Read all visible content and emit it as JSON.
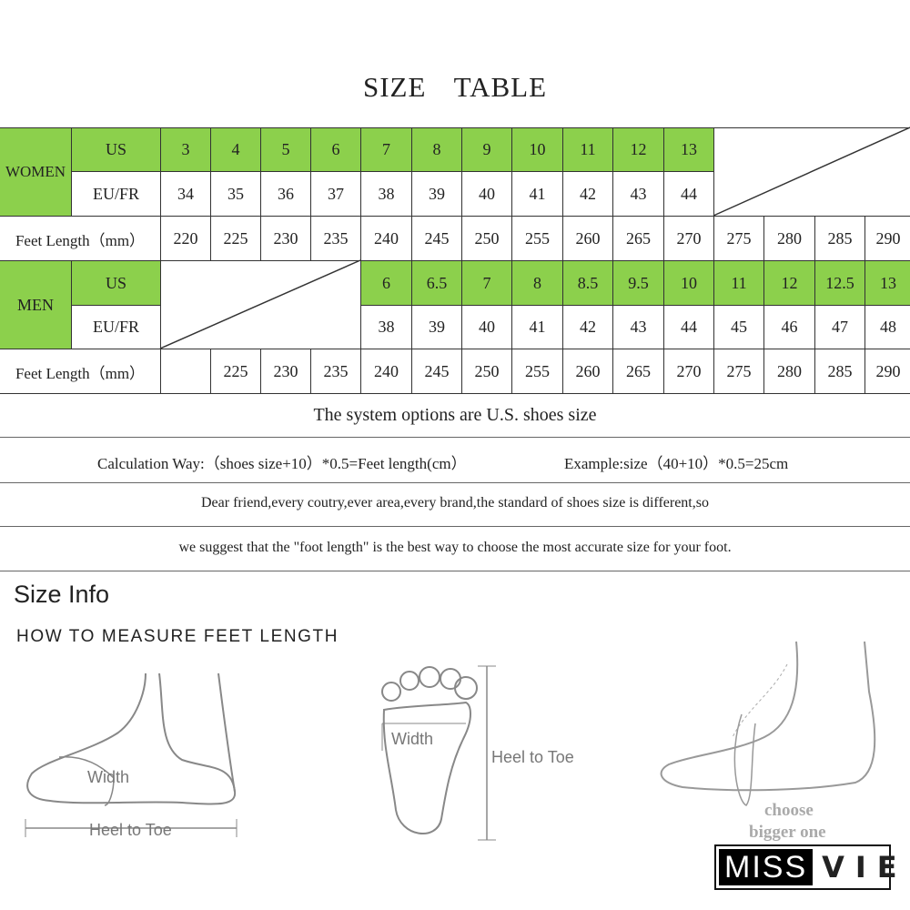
{
  "title": "SIZE    TABLE",
  "colors": {
    "header_green": "#8cd04c"
  },
  "women": {
    "group_label": "WOMEN",
    "us_label": "US",
    "eu_label": "EU/FR",
    "feet_label": "Feet Length（mm）",
    "us": [
      "3",
      "4",
      "5",
      "6",
      "7",
      "8",
      "9",
      "10",
      "11",
      "12",
      "13"
    ],
    "eu": [
      "34",
      "35",
      "36",
      "37",
      "38",
      "39",
      "40",
      "41",
      "42",
      "43",
      "44"
    ],
    "feet": [
      "220",
      "225",
      "230",
      "235",
      "240",
      "245",
      "250",
      "255",
      "260",
      "265",
      "270",
      "275",
      "280",
      "285",
      "290"
    ]
  },
  "men": {
    "group_label": "MEN",
    "us_label": "US",
    "eu_label": "EU/FR",
    "feet_label": "Feet Length（mm）",
    "us": [
      "6",
      "6.5",
      "7",
      "8",
      "8.5",
      "9.5",
      "10",
      "11",
      "12",
      "12.5",
      "13"
    ],
    "eu": [
      "38",
      "39",
      "40",
      "41",
      "42",
      "43",
      "44",
      "45",
      "46",
      "47",
      "48"
    ],
    "feet": [
      "",
      "225",
      "230",
      "235",
      "240",
      "245",
      "250",
      "255",
      "260",
      "265",
      "270",
      "275",
      "280",
      "285",
      "290"
    ]
  },
  "notes": {
    "system": "The system options are U.S. shoes size",
    "calc": "Calculation Way:（shoes size+10）*0.5=Feet length(cm）",
    "example": "Example:size（40+10）*0.5=25cm",
    "line3": "Dear friend,every coutry,ever area,every brand,the standard of shoes size is different,so",
    "line4": "we suggest that the \"foot length\" is the best way to choose the most accurate size for your foot."
  },
  "info": {
    "heading": "Size Info",
    "subheading": "HOW TO MEASURE FEET LENGTH",
    "side_width": "Width",
    "side_heel": "Heel to Toe",
    "sole_width": "Width",
    "sole_heel": "Heel to Toe",
    "choose1": "choose",
    "choose2": "bigger one"
  },
  "logo": {
    "part1": "MISS",
    "part2": "VIE"
  }
}
